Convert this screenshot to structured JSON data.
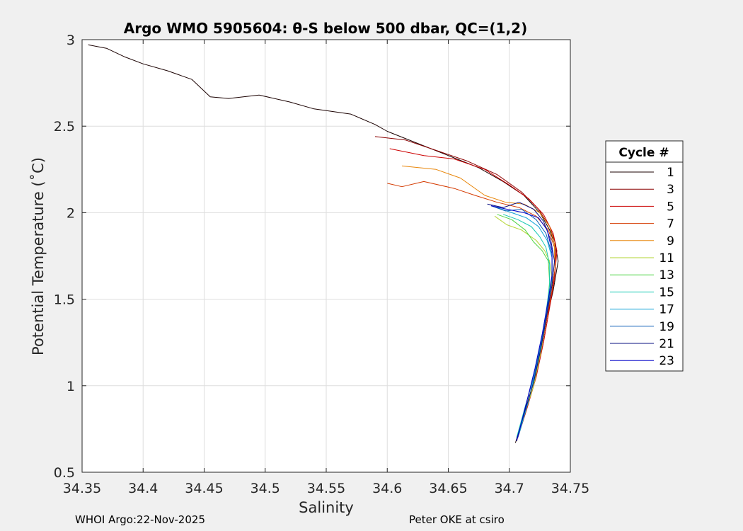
{
  "chart_data": {
    "type": "line",
    "title": "Argo WMO 5905604: θ-S below 500 dbar,  QC=(1,2)",
    "xlabel": "Salinity",
    "ylabel": "Potential Temperature (˚C)",
    "xlim": [
      34.35,
      34.75
    ],
    "ylim": [
      0.5,
      3.0
    ],
    "xticks": [
      34.35,
      34.4,
      34.45,
      34.5,
      34.55,
      34.6,
      34.65,
      34.7,
      34.75
    ],
    "xtick_labels": [
      "34.35",
      "34.4",
      "34.45",
      "34.5",
      "34.55",
      "34.6",
      "34.65",
      "34.7",
      "34.75"
    ],
    "yticks": [
      0.5,
      1.0,
      1.5,
      2.0,
      2.5,
      3.0
    ],
    "ytick_labels": [
      "0.5",
      "1",
      "1.5",
      "2",
      "2.5",
      "3"
    ],
    "grid": true,
    "legend": {
      "title": "Cycle #",
      "placement": "right-outside"
    },
    "series": [
      {
        "name": "1",
        "color": "#1a0000",
        "points": [
          [
            34.355,
            2.97
          ],
          [
            34.37,
            2.95
          ],
          [
            34.385,
            2.9
          ],
          [
            34.4,
            2.86
          ],
          [
            34.42,
            2.82
          ],
          [
            34.44,
            2.77
          ],
          [
            34.455,
            2.67
          ],
          [
            34.47,
            2.66
          ],
          [
            34.495,
            2.68
          ],
          [
            34.52,
            2.64
          ],
          [
            34.54,
            2.6
          ],
          [
            34.57,
            2.57
          ],
          [
            34.59,
            2.51
          ],
          [
            34.6,
            2.47
          ],
          [
            34.625,
            2.4
          ],
          [
            34.65,
            2.33
          ],
          [
            34.675,
            2.26
          ],
          [
            34.695,
            2.18
          ],
          [
            34.712,
            2.1
          ],
          [
            34.725,
            2.0
          ],
          [
            34.733,
            1.9
          ],
          [
            34.738,
            1.8
          ],
          [
            34.74,
            1.72
          ],
          [
            34.736,
            1.55
          ],
          [
            34.731,
            1.4
          ],
          [
            34.726,
            1.2
          ],
          [
            34.72,
            1.0
          ],
          [
            34.713,
            0.85
          ],
          [
            34.705,
            0.67
          ]
        ]
      },
      {
        "name": "3",
        "color": "#8b0000",
        "points": [
          [
            34.59,
            2.44
          ],
          [
            34.615,
            2.42
          ],
          [
            34.64,
            2.36
          ],
          [
            34.665,
            2.3
          ],
          [
            34.69,
            2.22
          ],
          [
            34.71,
            2.12
          ],
          [
            34.724,
            2.02
          ],
          [
            34.733,
            1.92
          ],
          [
            34.738,
            1.82
          ],
          [
            34.738,
            1.7
          ],
          [
            34.735,
            1.55
          ],
          [
            34.731,
            1.4
          ],
          [
            34.726,
            1.2
          ],
          [
            34.72,
            1.0
          ],
          [
            34.713,
            0.85
          ],
          [
            34.706,
            0.68
          ]
        ]
      },
      {
        "name": "5",
        "color": "#cc0000",
        "points": [
          [
            34.602,
            2.37
          ],
          [
            34.63,
            2.33
          ],
          [
            34.655,
            2.31
          ],
          [
            34.68,
            2.25
          ],
          [
            34.7,
            2.16
          ],
          [
            34.716,
            2.08
          ],
          [
            34.728,
            1.99
          ],
          [
            34.736,
            1.88
          ],
          [
            34.739,
            1.78
          ],
          [
            34.737,
            1.62
          ],
          [
            34.733,
            1.45
          ],
          [
            34.728,
            1.25
          ],
          [
            34.722,
            1.05
          ],
          [
            34.715,
            0.88
          ],
          [
            34.707,
            0.7
          ]
        ]
      },
      {
        "name": "7",
        "color": "#d43a00",
        "points": [
          [
            34.6,
            2.17
          ],
          [
            34.612,
            2.15
          ],
          [
            34.63,
            2.18
          ],
          [
            34.655,
            2.14
          ],
          [
            34.672,
            2.1
          ],
          [
            34.69,
            2.06
          ],
          [
            34.708,
            2.03
          ],
          [
            34.722,
            1.98
          ],
          [
            34.732,
            1.9
          ],
          [
            34.737,
            1.8
          ],
          [
            34.738,
            1.7
          ],
          [
            34.735,
            1.55
          ],
          [
            34.731,
            1.4
          ],
          [
            34.726,
            1.2
          ],
          [
            34.72,
            1.0
          ],
          [
            34.712,
            0.82
          ]
        ]
      },
      {
        "name": "9",
        "color": "#e8870c",
        "points": [
          [
            34.612,
            2.27
          ],
          [
            34.64,
            2.25
          ],
          [
            34.66,
            2.2
          ],
          [
            34.68,
            2.1
          ],
          [
            34.697,
            2.06
          ],
          [
            34.712,
            2.05
          ],
          [
            34.725,
            2.0
          ],
          [
            34.733,
            1.92
          ],
          [
            34.737,
            1.82
          ],
          [
            34.737,
            1.7
          ],
          [
            34.734,
            1.55
          ],
          [
            34.73,
            1.4
          ],
          [
            34.725,
            1.2
          ],
          [
            34.719,
            1.0
          ],
          [
            34.712,
            0.84
          ]
        ]
      },
      {
        "name": "11",
        "color": "#b2d431",
        "points": [
          [
            34.688,
            1.98
          ],
          [
            34.698,
            1.93
          ],
          [
            34.71,
            1.9
          ],
          [
            34.722,
            1.84
          ],
          [
            34.729,
            1.78
          ],
          [
            34.733,
            1.72
          ],
          [
            34.735,
            1.62
          ],
          [
            34.733,
            1.5
          ],
          [
            34.73,
            1.38
          ],
          [
            34.726,
            1.2
          ],
          [
            34.72,
            1.0
          ],
          [
            34.713,
            0.85
          ],
          [
            34.707,
            0.72
          ]
        ]
      },
      {
        "name": "13",
        "color": "#4fd443",
        "points": [
          [
            34.69,
            1.99
          ],
          [
            34.702,
            1.96
          ],
          [
            34.713,
            1.9
          ],
          [
            34.72,
            1.83
          ],
          [
            34.727,
            1.78
          ],
          [
            34.732,
            1.72
          ],
          [
            34.733,
            1.6
          ],
          [
            34.731,
            1.45
          ],
          [
            34.727,
            1.28
          ],
          [
            34.722,
            1.1
          ],
          [
            34.716,
            0.92
          ],
          [
            34.709,
            0.75
          ]
        ]
      },
      {
        "name": "15",
        "color": "#18c9b4",
        "points": [
          [
            34.695,
            1.99
          ],
          [
            34.707,
            1.96
          ],
          [
            34.718,
            1.92
          ],
          [
            34.725,
            1.86
          ],
          [
            34.73,
            1.8
          ],
          [
            34.733,
            1.7
          ],
          [
            34.733,
            1.58
          ],
          [
            34.73,
            1.42
          ],
          [
            34.726,
            1.25
          ],
          [
            34.72,
            1.05
          ],
          [
            34.713,
            0.88
          ],
          [
            34.706,
            0.7
          ]
        ]
      },
      {
        "name": "17",
        "color": "#0aa0d6",
        "points": [
          [
            34.69,
            2.03
          ],
          [
            34.702,
            2.0
          ],
          [
            34.714,
            1.97
          ],
          [
            34.724,
            1.92
          ],
          [
            34.731,
            1.84
          ],
          [
            34.735,
            1.74
          ],
          [
            34.735,
            1.62
          ],
          [
            34.732,
            1.48
          ],
          [
            34.728,
            1.3
          ],
          [
            34.722,
            1.1
          ],
          [
            34.716,
            0.92
          ],
          [
            34.708,
            0.72
          ]
        ]
      },
      {
        "name": "19",
        "color": "#1060b8",
        "points": [
          [
            34.685,
            2.04
          ],
          [
            34.697,
            2.01
          ],
          [
            34.71,
            2.02
          ],
          [
            34.722,
            1.96
          ],
          [
            34.73,
            1.88
          ],
          [
            34.735,
            1.76
          ],
          [
            34.735,
            1.63
          ],
          [
            34.732,
            1.48
          ],
          [
            34.727,
            1.28
          ],
          [
            34.721,
            1.08
          ],
          [
            34.714,
            0.9
          ],
          [
            34.707,
            0.7
          ]
        ]
      },
      {
        "name": "21",
        "color": "#0a0f80",
        "points": [
          [
            34.682,
            2.05
          ],
          [
            34.695,
            2.03
          ],
          [
            34.708,
            2.06
          ],
          [
            34.72,
            2.02
          ],
          [
            34.728,
            1.95
          ],
          [
            34.734,
            1.84
          ],
          [
            34.737,
            1.72
          ],
          [
            34.735,
            1.58
          ],
          [
            34.731,
            1.42
          ],
          [
            34.726,
            1.22
          ],
          [
            34.72,
            1.02
          ],
          [
            34.713,
            0.86
          ],
          [
            34.706,
            0.69
          ]
        ]
      },
      {
        "name": "23",
        "color": "#0000c8",
        "points": [
          [
            34.685,
            2.04
          ],
          [
            34.698,
            2.02
          ],
          [
            34.712,
            2.0
          ],
          [
            34.724,
            1.97
          ],
          [
            34.731,
            1.9
          ],
          [
            34.735,
            1.78
          ],
          [
            34.735,
            1.64
          ],
          [
            34.732,
            1.5
          ],
          [
            34.727,
            1.3
          ],
          [
            34.721,
            1.1
          ],
          [
            34.714,
            0.9
          ],
          [
            34.706,
            0.68
          ]
        ]
      }
    ]
  },
  "footer": {
    "left": "WHOI Argo:22-Nov-2025",
    "right": "Peter OKE at csiro"
  }
}
